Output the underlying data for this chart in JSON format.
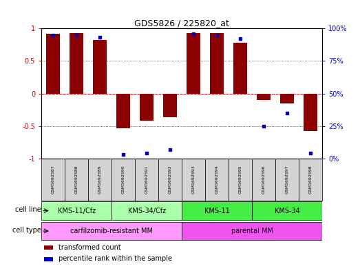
{
  "title": "GDS5826 / 225820_at",
  "samples": [
    "GSM1692587",
    "GSM1692588",
    "GSM1692589",
    "GSM1692590",
    "GSM1692591",
    "GSM1692592",
    "GSM1692593",
    "GSM1692594",
    "GSM1692595",
    "GSM1692596",
    "GSM1692597",
    "GSM1692598"
  ],
  "transformed_count": [
    0.92,
    0.93,
    0.82,
    -0.53,
    -0.42,
    -0.37,
    0.93,
    0.93,
    0.78,
    -0.1,
    -0.15,
    -0.58
  ],
  "percentile_rank": [
    95,
    95,
    93,
    3,
    4,
    7,
    96,
    95,
    92,
    25,
    35,
    4
  ],
  "bar_color": "#8B0000",
  "dot_color": "#0000CD",
  "zero_line_color": "#CC0000",
  "grid_color": "#000000",
  "ylim": [
    -1,
    1
  ],
  "y2lim": [
    0,
    100
  ],
  "yticks": [
    -1,
    -0.5,
    0,
    0.5,
    1
  ],
  "y2ticks": [
    0,
    25,
    50,
    75,
    100
  ],
  "ytick_labels": [
    "-1",
    "-0.5",
    "0",
    "0.5",
    "1"
  ],
  "y2tick_labels": [
    "0%",
    "25%",
    "50%",
    "75%",
    "100%"
  ],
  "cell_line_groups": [
    {
      "label": "KMS-11/Cfz",
      "start": 0,
      "end": 3,
      "color": "#AAFFAA"
    },
    {
      "label": "KMS-34/Cfz",
      "start": 3,
      "end": 6,
      "color": "#AAFFAA"
    },
    {
      "label": "KMS-11",
      "start": 6,
      "end": 9,
      "color": "#44EE44"
    },
    {
      "label": "KMS-34",
      "start": 9,
      "end": 12,
      "color": "#44EE44"
    }
  ],
  "cell_type_groups": [
    {
      "label": "carfilzomib-resistant MM",
      "start": 0,
      "end": 6,
      "color": "#FF99FF"
    },
    {
      "label": "parental MM",
      "start": 6,
      "end": 12,
      "color": "#EE55EE"
    }
  ],
  "legend": [
    {
      "label": "transformed count",
      "color": "#8B0000"
    },
    {
      "label": "percentile rank within the sample",
      "color": "#0000CD"
    }
  ],
  "bar_width": 0.6,
  "sample_box_color": "#D3D3D3",
  "cell_line_label": "cell line",
  "cell_type_label": "cell type"
}
